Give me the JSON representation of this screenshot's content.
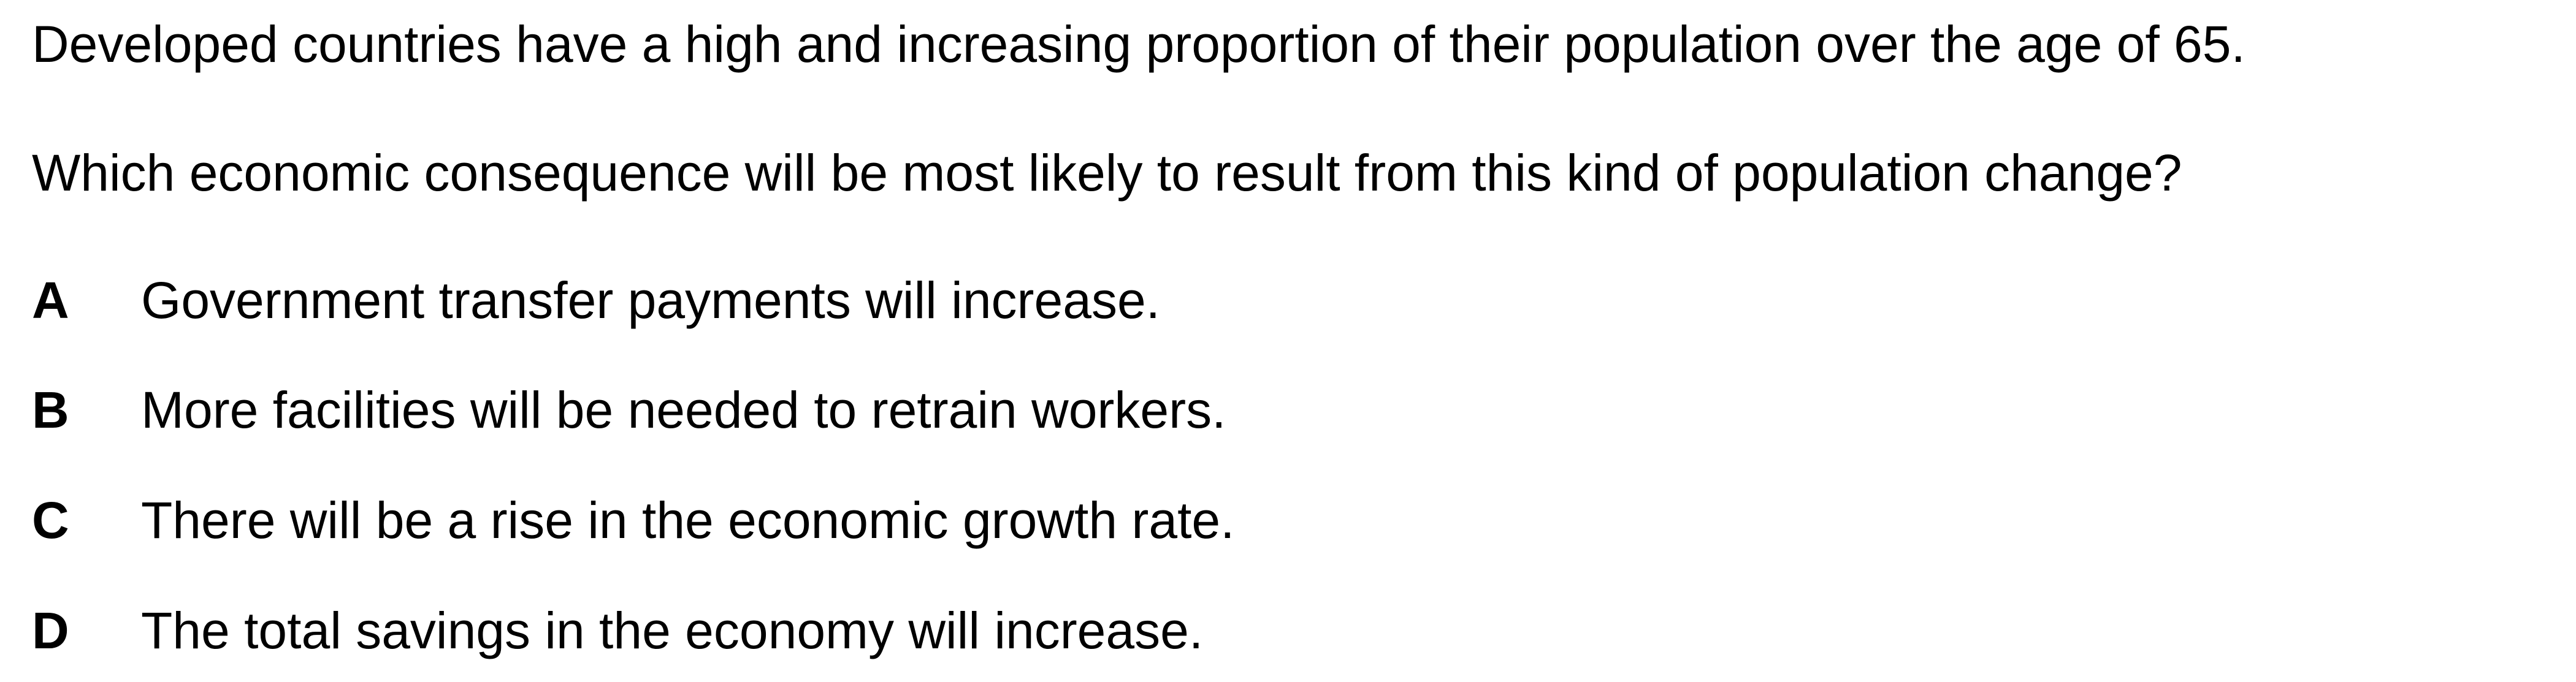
{
  "question": {
    "stem_line_1": "Developed countries have a high and increasing proportion of their population over the age of 65.",
    "stem_line_2": "Which economic consequence will be most likely to result from this kind of population change?",
    "options": [
      {
        "letter": "A",
        "text": "Government transfer payments will increase."
      },
      {
        "letter": "B",
        "text": "More facilities will be needed to retrain workers."
      },
      {
        "letter": "C",
        "text": "There will be a rise in the economic growth rate."
      },
      {
        "letter": "D",
        "text": "The total savings in the economy will increase."
      }
    ]
  }
}
